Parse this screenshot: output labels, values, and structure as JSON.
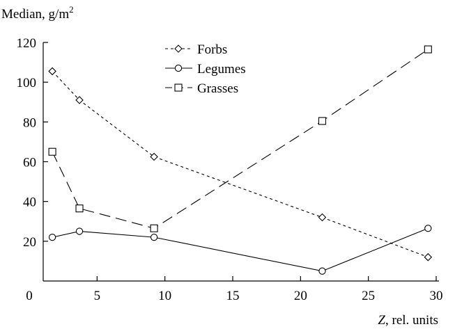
{
  "chart_data": {
    "type": "line",
    "ylabel": "Median, g/m",
    "ylabel_sup": "2",
    "xlabel_var": "Z",
    "xlabel_rest": ", rel. units",
    "xlim": [
      0,
      30
    ],
    "ylim": [
      0,
      120
    ],
    "x_ticks": [
      0,
      5,
      10,
      15,
      20,
      25,
      30
    ],
    "y_ticks": [
      20,
      40,
      60,
      80,
      100,
      120
    ],
    "grid": false,
    "legend_position": "top-center",
    "series": [
      {
        "name": "Forbs",
        "marker": "diamond",
        "dash": "short-dash",
        "x": [
          1.7,
          3.7,
          9.2,
          21.6,
          29.4
        ],
        "y": [
          105.5,
          91,
          62.5,
          32,
          12
        ]
      },
      {
        "name": "Legumes",
        "marker": "circle",
        "dash": "solid",
        "x": [
          1.7,
          3.7,
          9.2,
          21.6,
          29.4
        ],
        "y": [
          22,
          25,
          22,
          5,
          26.5
        ]
      },
      {
        "name": "Grasses",
        "marker": "square",
        "dash": "long-dash",
        "x": [
          1.7,
          3.7,
          9.2,
          21.6,
          29.4
        ],
        "y": [
          65,
          36.5,
          26.5,
          80.5,
          116.5
        ]
      }
    ]
  }
}
